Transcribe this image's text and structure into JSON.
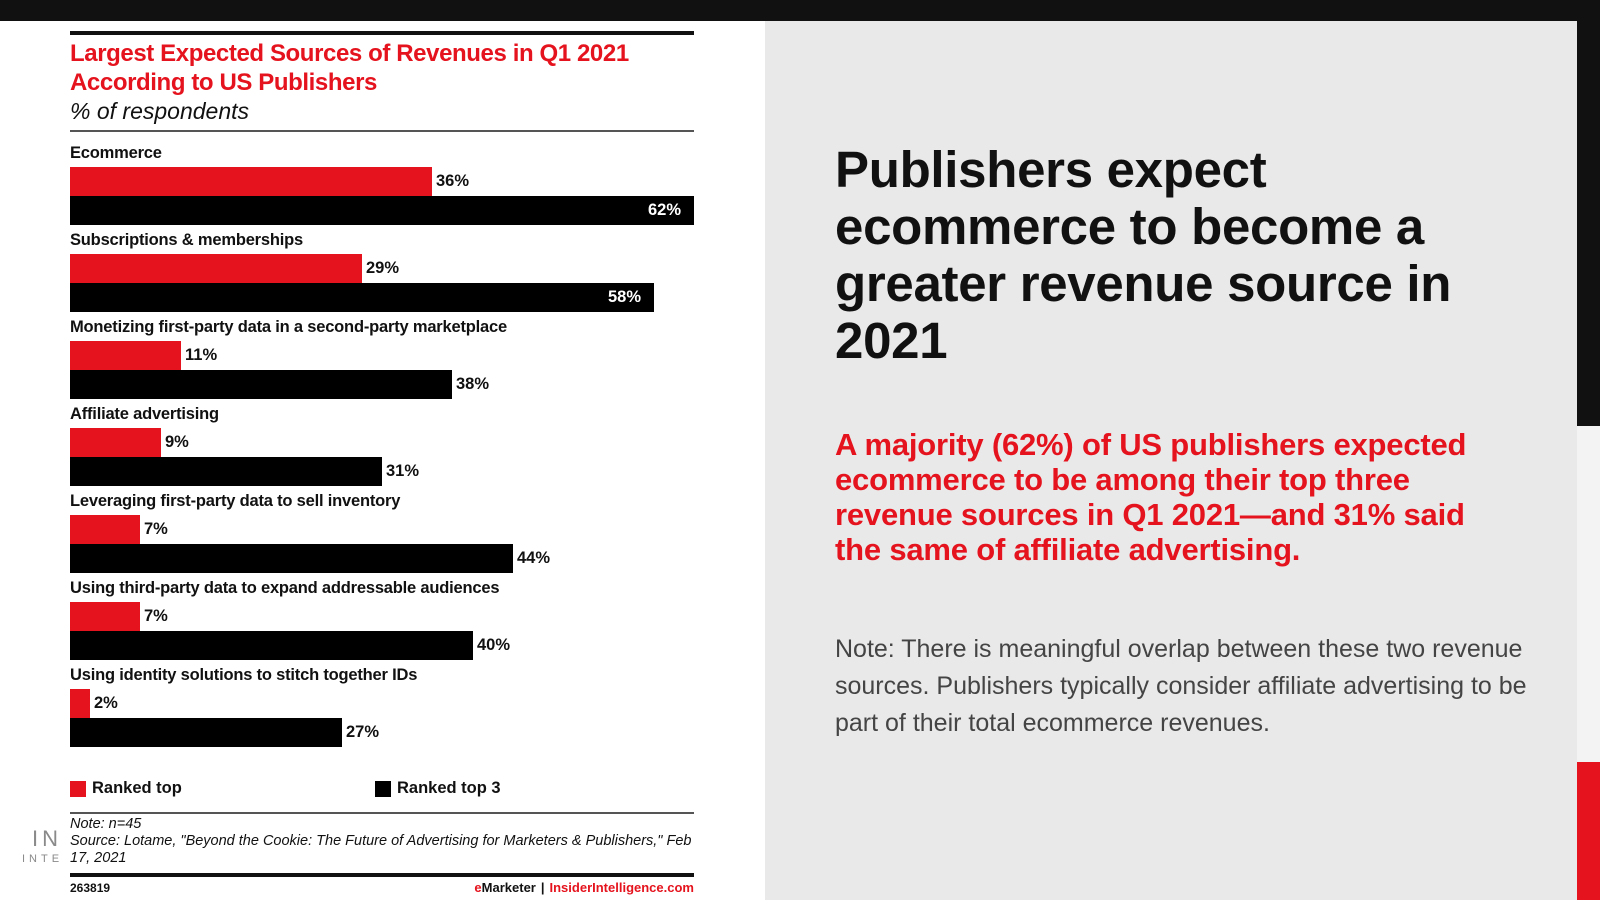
{
  "chart_card": {
    "title": "Largest Expected Sources of Revenues in Q1 2021 According to US Publishers",
    "subtitle": "% of respondents",
    "note": "Note: n=45",
    "source": "Source: Lotame, \"Beyond the Cookie: The Future of Advertising for Marketers & Publishers,\" Feb 17, 2021",
    "chart_id": "263819",
    "credit": {
      "prefix_red": "e",
      "brand": "Marketer",
      "separator": "|",
      "site": "InsiderIntelligence.com"
    },
    "brand_mark": "IN",
    "brand_mark_small": "INTE"
  },
  "chart_data": {
    "type": "bar",
    "orientation": "horizontal",
    "title": "Largest Expected Sources of Revenues in Q1 2021 According to US Publishers",
    "subtitle": "% of respondents",
    "xlabel": "",
    "ylabel": "",
    "unit": "%",
    "xlim": [
      0,
      62
    ],
    "grid": false,
    "legend_position": "bottom",
    "categories": [
      "Ecommerce",
      "Subscriptions & memberships",
      "Monetizing first-party data in a second-party marketplace",
      "Affiliate advertising",
      "Leveraging first-party data to sell inventory",
      "Using third-party data to expand addressable audiences",
      "Using identity solutions to stitch together IDs"
    ],
    "series": [
      {
        "name": "Ranked top",
        "color": "#e5131d",
        "values": [
          36,
          29,
          11,
          9,
          7,
          7,
          2
        ]
      },
      {
        "name": "Ranked top 3",
        "color": "#000000",
        "values": [
          62,
          58,
          38,
          31,
          44,
          40,
          27
        ]
      }
    ]
  },
  "panel": {
    "headline": "Publishers expect ecommerce to become a greater revenue source in 2021",
    "subhead": "A majority (62%) of US publishers expected ecommerce to be among their top three revenue sources in Q1 2021—and 31% said the same of affiliate advertising.",
    "note": "Note: There is meaningful overlap between these two revenue sources. Publishers typically consider affiliate advertising to be part of their total ecommerce revenues."
  },
  "colors": {
    "accent_red": "#e5131d",
    "dark": "#111111",
    "panel_bg": "#e9e9e9"
  }
}
